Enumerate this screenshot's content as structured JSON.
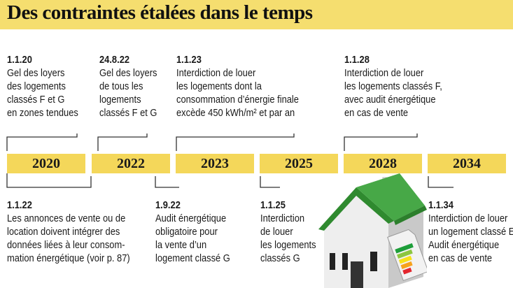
{
  "title": "Des contraintes étalées dans le temps",
  "years": [
    "2020",
    "2022",
    "2023",
    "2025",
    "2028",
    "2034"
  ],
  "top_events": [
    {
      "date": "1.1.20",
      "text": "Gel des loyers\ndes logements\nclassés F et G\nen zones tendues"
    },
    {
      "date": "24.8.22",
      "text": "Gel des loyers\nde tous les\nlogements\nclassés F et G"
    },
    {
      "date": "1.1.23",
      "text": "Interdiction de louer\nles logements dont la\nconsommation d’énergie finale\nexcède 450 kWh/m² et par an"
    },
    {
      "date": "1.1.28",
      "text": "Interdiction de louer\nles logements classés F,\navec audit énergétique\nen cas de vente"
    }
  ],
  "bottom_events": [
    {
      "date": "1.1.22",
      "text": "Les annonces de vente ou de\nlocation doivent intégrer des\ndonnées liées à leur consom-\nmation énergétique (voir p. 87)"
    },
    {
      "date": "1.9.22",
      "text": "Audit énergétique\nobligatoire pour\nla vente d’un\nlogement classé G"
    },
    {
      "date": "1.1.25",
      "text": "Interdiction\nde louer\nles logements\nclassés G"
    },
    {
      "date": "1.1.34",
      "text": "Interdiction de louer\nun logement classé E.\nAudit énergétique\nen cas de vente"
    }
  ],
  "colors": {
    "title_bar": "#f5de6f",
    "year_band": "#f4d75a",
    "roof": "#3c9a3c",
    "wall": "#eeeeee"
  },
  "illustration": "house-with-energy-label-icon"
}
